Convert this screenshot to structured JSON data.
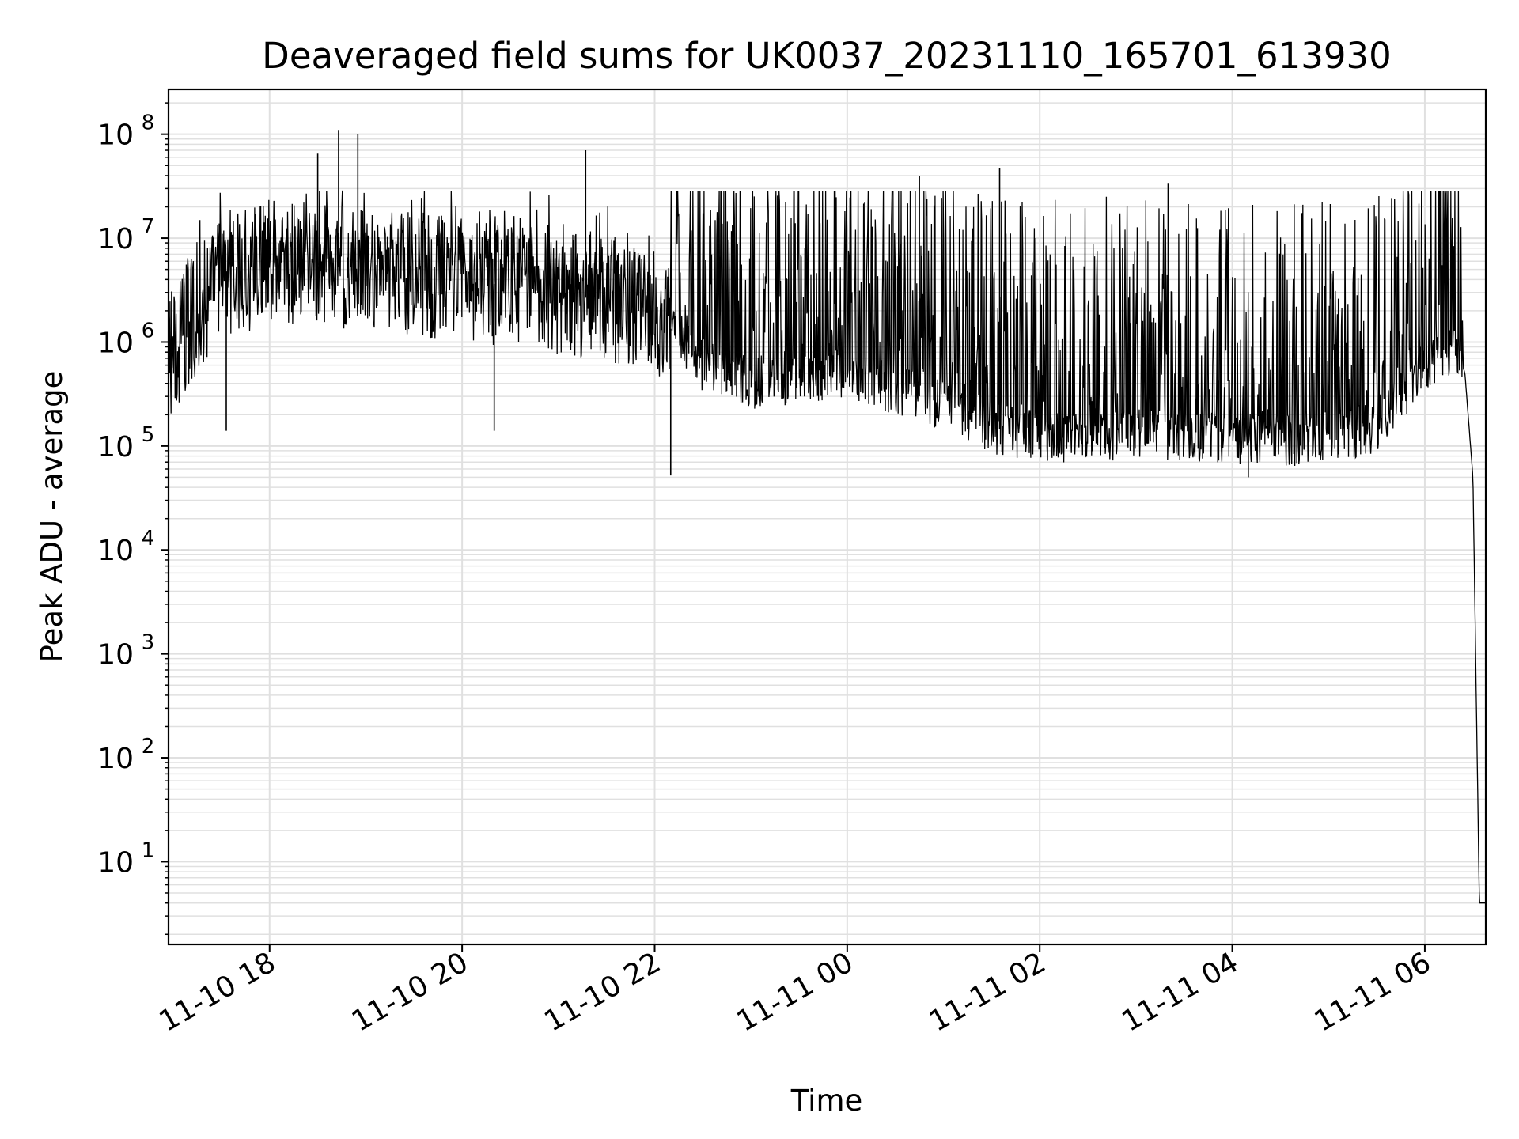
{
  "chart_data": {
    "type": "line",
    "title": "Deaveraged field sums for UK0037_20231110_165701_613930",
    "xlabel": "Time",
    "ylabel": "Peak ADU - average",
    "yscale": "log",
    "ylim": [
      1.6,
      270000000
    ],
    "xlim": [
      "2023-11-10 16:57",
      "2023-11-11 06:38"
    ],
    "grid": true,
    "line_color": "#000000",
    "grid_color": "#e0e0e0",
    "x_ticks": [
      {
        "label": "11-10 18",
        "value": "2023-11-10 18:00"
      },
      {
        "label": "11-10 20",
        "value": "2023-11-10 20:00"
      },
      {
        "label": "11-10 22",
        "value": "2023-11-10 22:00"
      },
      {
        "label": "11-11 00",
        "value": "2023-11-11 00:00"
      },
      {
        "label": "11-11 02",
        "value": "2023-11-11 02:00"
      },
      {
        "label": "11-11 04",
        "value": "2023-11-11 04:00"
      },
      {
        "label": "11-11 06",
        "value": "2023-11-11 06:00"
      }
    ],
    "y_ticks": [
      {
        "base": "10",
        "exp": "1",
        "value": 10
      },
      {
        "base": "10",
        "exp": "2",
        "value": 100
      },
      {
        "base": "10",
        "exp": "3",
        "value": 1000
      },
      {
        "base": "10",
        "exp": "4",
        "value": 10000
      },
      {
        "base": "10",
        "exp": "5",
        "value": 100000
      },
      {
        "base": "10",
        "exp": "6",
        "value": 1000000
      },
      {
        "base": "10",
        "exp": "7",
        "value": 10000000
      },
      {
        "base": "10",
        "exp": "8",
        "value": 100000000
      }
    ],
    "series": [
      {
        "baseline": [
          {
            "x": "2023-11-10 16:57",
            "y": 600000
          },
          {
            "x": "2023-11-10 17:10",
            "y": 1500000
          },
          {
            "x": "2023-11-10 17:30",
            "y": 4000000
          },
          {
            "x": "2023-11-10 18:00",
            "y": 6000000
          },
          {
            "x": "2023-11-10 18:30",
            "y": 5500000
          },
          {
            "x": "2023-11-10 19:00",
            "y": 5000000
          },
          {
            "x": "2023-11-10 19:30",
            "y": 4500000
          },
          {
            "x": "2023-11-10 20:00",
            "y": 4000000
          },
          {
            "x": "2023-11-10 21:00",
            "y": 3000000
          },
          {
            "x": "2023-11-10 22:00",
            "y": 2000000
          },
          {
            "x": "2023-11-10 22:30",
            "y": 600000
          },
          {
            "x": "2023-11-10 23:00",
            "y": 400000
          },
          {
            "x": "2023-11-11 00:00",
            "y": 500000
          },
          {
            "x": "2023-11-11 00:45",
            "y": 300000
          },
          {
            "x": "2023-11-11 01:30",
            "y": 150000
          },
          {
            "x": "2023-11-11 02:00",
            "y": 120000
          },
          {
            "x": "2023-11-11 03:00",
            "y": 130000
          },
          {
            "x": "2023-11-11 04:00",
            "y": 120000
          },
          {
            "x": "2023-11-11 04:45",
            "y": 110000
          },
          {
            "x": "2023-11-11 05:30",
            "y": 150000
          },
          {
            "x": "2023-11-11 06:00",
            "y": 600000
          },
          {
            "x": "2023-11-11 06:20",
            "y": 900000
          },
          {
            "x": "2023-11-11 06:25",
            "y": 500000
          },
          {
            "x": "2023-11-11 06:30",
            "y": 50000
          },
          {
            "x": "2023-11-11 06:34",
            "y": 4
          },
          {
            "x": "2023-11-11 06:38",
            "y": 4
          }
        ],
        "spikes": [
          {
            "x": "2023-11-10 18:30",
            "y": 65000000
          },
          {
            "x": "2023-11-10 18:43",
            "y": 110000000
          },
          {
            "x": "2023-11-10 18:55",
            "y": 100000000
          },
          {
            "x": "2023-11-10 21:17",
            "y": 70000000
          },
          {
            "x": "2023-11-11 01:35",
            "y": 47000000
          },
          {
            "x": "2023-11-11 00:45",
            "y": 40000000
          },
          {
            "x": "2023-11-11 03:20",
            "y": 34000000
          },
          {
            "x": "2023-11-11 06:13",
            "y": 27000000
          },
          {
            "x": "2023-11-10 17:33",
            "y": 140000
          },
          {
            "x": "2023-11-10 20:20",
            "y": 140000
          },
          {
            "x": "2023-11-10 22:10",
            "y": 52000
          },
          {
            "x": "2023-11-11 04:10",
            "y": 50000
          }
        ]
      }
    ]
  }
}
